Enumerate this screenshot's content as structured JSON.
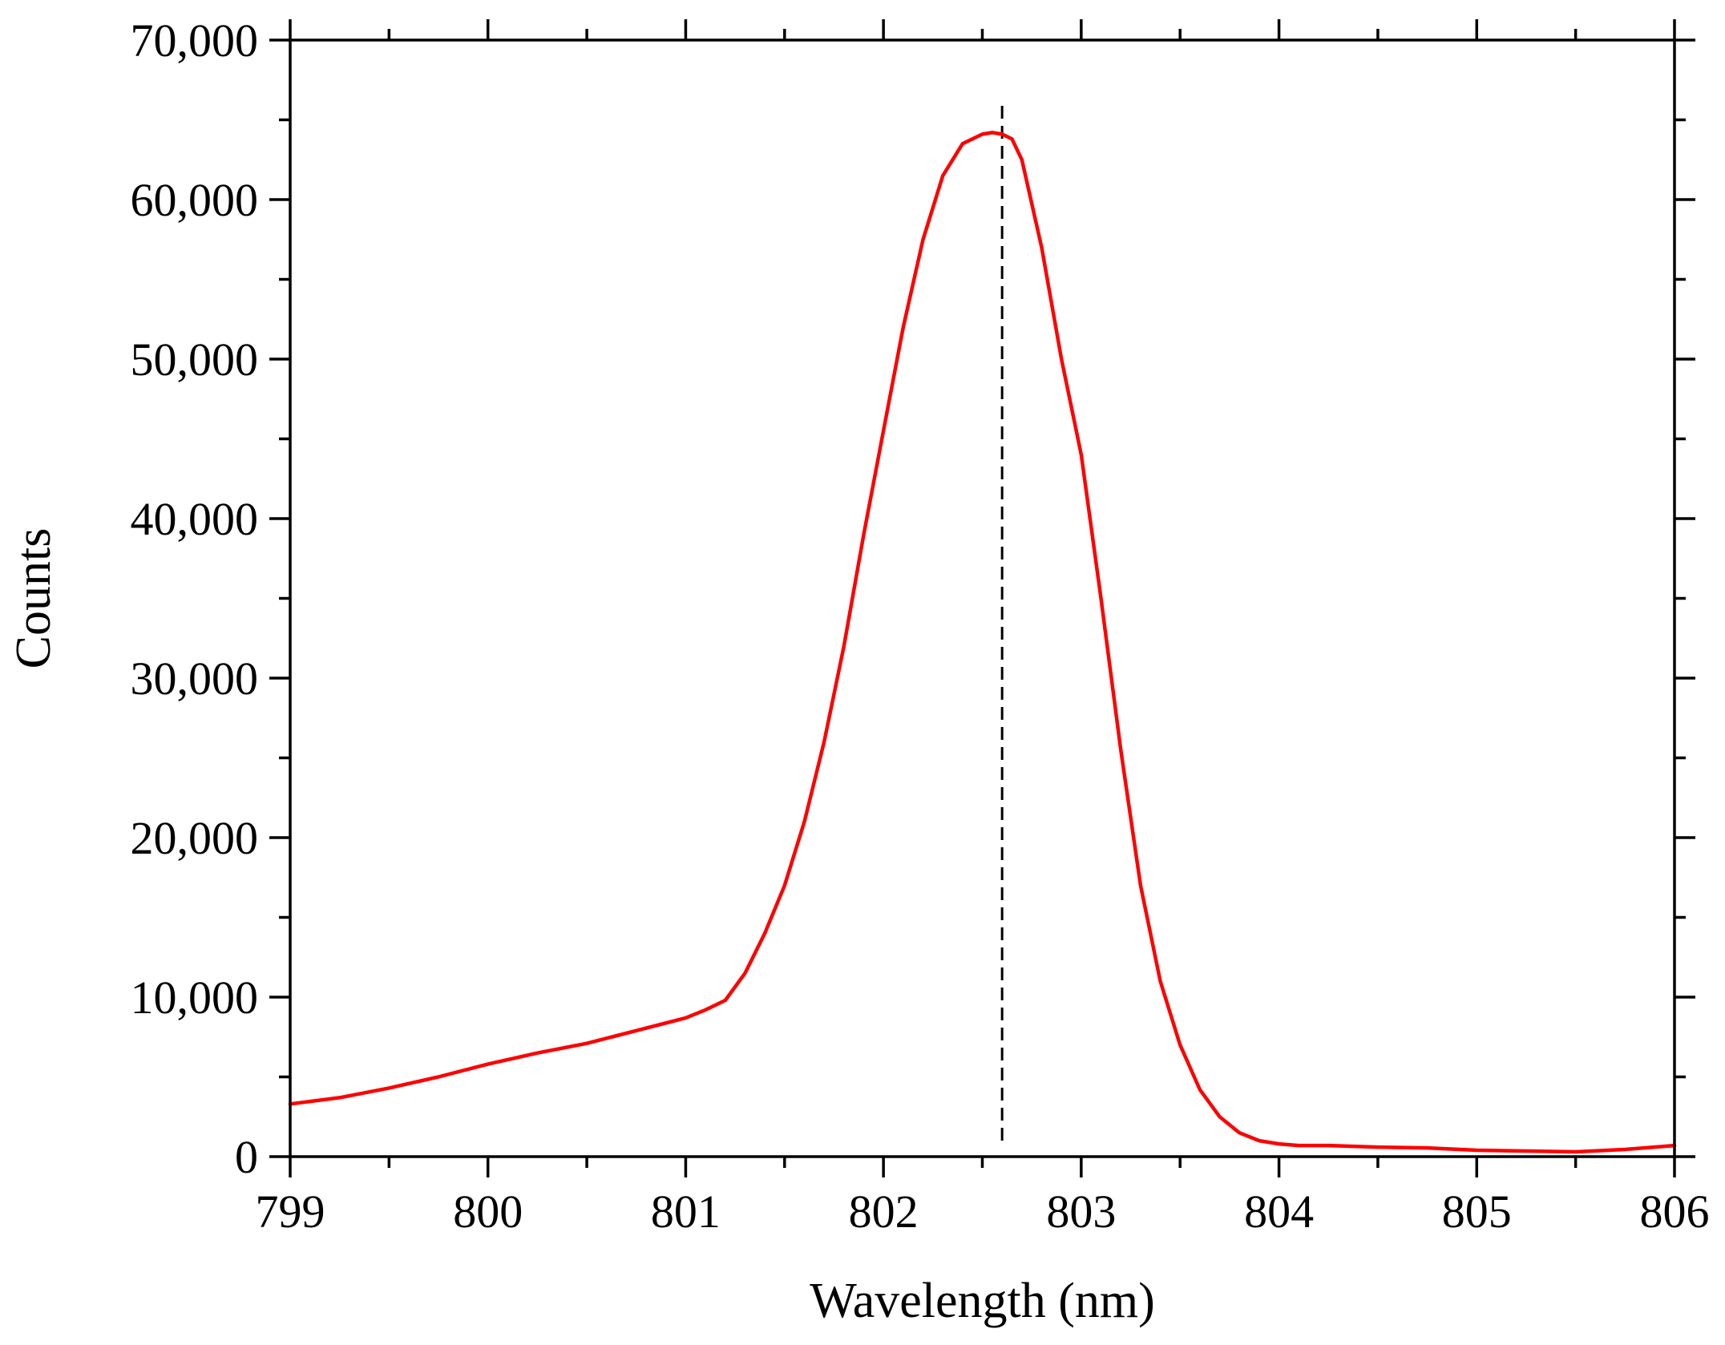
{
  "chart_data": {
    "type": "line",
    "xlabel": "Wavelength (nm)",
    "ylabel": "Counts",
    "xlim": [
      799,
      806
    ],
    "ylim": [
      0,
      70000
    ],
    "x_ticks": [
      799,
      800,
      801,
      802,
      803,
      804,
      805,
      806
    ],
    "x_tick_labels": [
      "799",
      "800",
      "801",
      "802",
      "803",
      "804",
      "805",
      "806"
    ],
    "y_ticks": [
      0,
      10000,
      20000,
      30000,
      40000,
      50000,
      60000,
      70000
    ],
    "y_tick_labels": [
      "0",
      "10,000",
      "20,000",
      "30,000",
      "40,000",
      "50,000",
      "60,000",
      "70,000"
    ],
    "grid": false,
    "colors": {
      "series": "#ff0000",
      "reference_line": "#000000"
    },
    "reference_line": {
      "x": 802.6,
      "style": "dashed"
    },
    "series": [
      {
        "x": [
          799.0,
          799.25,
          799.5,
          799.75,
          800.0,
          800.25,
          800.5,
          800.75,
          801.0,
          801.1,
          801.2,
          801.3,
          801.4,
          801.5,
          801.6,
          801.7,
          801.8,
          801.9,
          802.0,
          802.1,
          802.2,
          802.3,
          802.4,
          802.5,
          802.55,
          802.6,
          802.65,
          802.7,
          802.8,
          802.9,
          803.0,
          803.1,
          803.2,
          803.3,
          803.4,
          803.5,
          803.6,
          803.7,
          803.8,
          803.9,
          804.0,
          804.1,
          804.25,
          804.5,
          804.75,
          805.0,
          805.25,
          805.5,
          805.75,
          806.0
        ],
        "y": [
          3300,
          3700,
          4300,
          5000,
          5800,
          6500,
          7100,
          7900,
          8700,
          9200,
          9800,
          11500,
          14000,
          17000,
          21000,
          26000,
          32000,
          39000,
          45500,
          52000,
          57500,
          61500,
          63500,
          64100,
          64200,
          64100,
          63800,
          62500,
          57000,
          50000,
          44000,
          35000,
          25500,
          17000,
          11000,
          7000,
          4200,
          2500,
          1500,
          1000,
          800,
          700,
          700,
          600,
          550,
          400,
          350,
          300,
          450,
          700
        ]
      }
    ]
  }
}
